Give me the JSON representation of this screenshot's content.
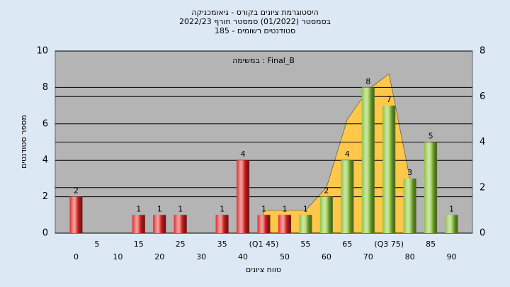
{
  "chart_data": {
    "type": "bar",
    "title": "היסטוגרמת ציונים בקורס - גיאומכניקה",
    "subtitle": "בסמסטר  (01/2022)  סמסטר חורף 2022/23",
    "subtitle2": "סטודנטים רשומים - 185",
    "annotation": "במשימה : Final_B",
    "x_label": "טווח ציונים",
    "y_label": "מספר סטודנטים",
    "categories": [
      "0",
      "5",
      "10",
      "15",
      "20",
      "25",
      "30",
      "35",
      "40",
      "(Q1 45)",
      "50",
      "55",
      "60",
      "65",
      "70",
      "(Q3 75)",
      "80",
      "85",
      "90"
    ],
    "values": [
      2,
      0,
      0,
      1,
      1,
      1,
      0,
      1,
      4,
      1,
      1,
      1,
      2,
      4,
      8,
      7,
      3,
      5,
      1
    ],
    "colors": [
      "#e02828",
      "#e02828",
      "#e02828",
      "#e02828",
      "#e02828",
      "#e02828",
      "#e02828",
      "#e02828",
      "#e02828",
      "#e02828",
      "#e02828",
      "#8cc43c",
      "#8cc43c",
      "#8cc43c",
      "#8cc43c",
      "#8cc43c",
      "#8cc43c",
      "#8cc43c",
      "#8cc43c"
    ],
    "area": {
      "color": "#ffc84a",
      "axis": "y2",
      "values": [
        null,
        null,
        null,
        null,
        null,
        null,
        null,
        null,
        null,
        1,
        1,
        1,
        2,
        5,
        6.3,
        7,
        2.4,
        null,
        null
      ]
    },
    "ylim": [
      0,
      10
    ],
    "yticks": [
      0,
      2,
      4,
      6,
      8,
      10
    ],
    "y2lim": [
      0,
      8
    ],
    "y2ticks": [
      0,
      2,
      4,
      6,
      8
    ],
    "grid": true
  }
}
